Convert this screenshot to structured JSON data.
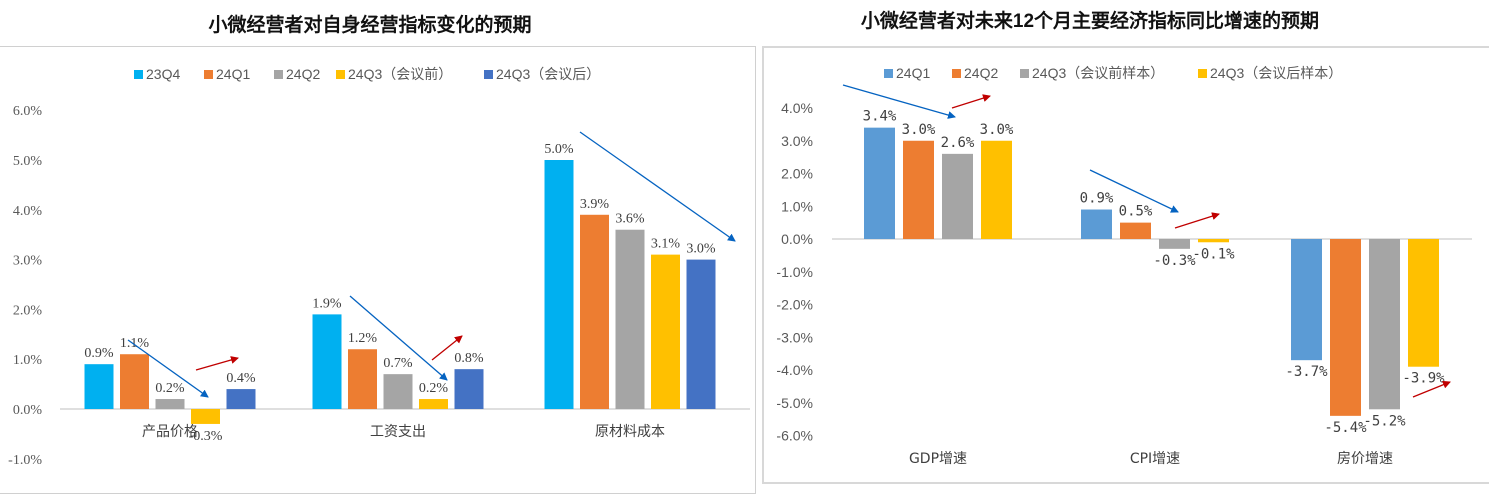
{
  "chart_data": [
    {
      "type": "bar",
      "title": "小微经营者对自身经营指标变化的预期",
      "categories": [
        "产品价格",
        "工资支出",
        "原材料成本"
      ],
      "series": [
        {
          "name": "23Q4",
          "color": "#00B0F0",
          "values": [
            0.9,
            1.9,
            5.0
          ]
        },
        {
          "name": "24Q1",
          "color": "#ED7D31",
          "values": [
            1.1,
            1.2,
            3.9
          ]
        },
        {
          "name": "24Q2",
          "color": "#A5A5A5",
          "values": [
            0.2,
            0.7,
            3.6
          ]
        },
        {
          "name": "24Q3（会议前）",
          "color": "#FFC000",
          "values": [
            -0.3,
            0.2,
            3.1
          ]
        },
        {
          "name": "24Q3（会议后）",
          "color": "#4472C4",
          "values": [
            0.4,
            0.8,
            3.0
          ]
        }
      ],
      "yticks": [
        "6.0%",
        "5.0%",
        "4.0%",
        "3.0%",
        "2.0%",
        "1.0%",
        "0.0%",
        "-1.0%"
      ],
      "ylim": [
        -1,
        6
      ],
      "unit": "%",
      "legend": "top",
      "grid": false
    },
    {
      "type": "bar",
      "title": "小微经营者对未来12个月主要经济指标同比增速的预期",
      "categories": [
        "GDP增速",
        "CPI增速",
        "房价增速"
      ],
      "series": [
        {
          "name": "24Q1",
          "color": "#5B9BD5",
          "values": [
            3.4,
            0.9,
            -3.7
          ]
        },
        {
          "name": "24Q2",
          "color": "#ED7D31",
          "values": [
            3.0,
            0.5,
            -5.4
          ]
        },
        {
          "name": "24Q3（会议前样本）",
          "color": "#A5A5A5",
          "values": [
            2.6,
            -0.3,
            -5.2
          ]
        },
        {
          "name": "24Q3（会议后样本）",
          "color": "#FFC000",
          "values": [
            3.0,
            -0.1,
            -3.9
          ]
        }
      ],
      "yticks": [
        "4.0%",
        "3.0%",
        "2.0%",
        "1.0%",
        "0.0%",
        "-1.0%",
        "-2.0%",
        "-3.0%",
        "-4.0%",
        "-5.0%",
        "-6.0%"
      ],
      "ylim": [
        -6,
        4
      ],
      "unit": "%",
      "legend": "top",
      "grid": false
    }
  ],
  "annotations": {
    "down_arrow_color": "#0563C1",
    "up_arrow_color": "#C00000"
  }
}
